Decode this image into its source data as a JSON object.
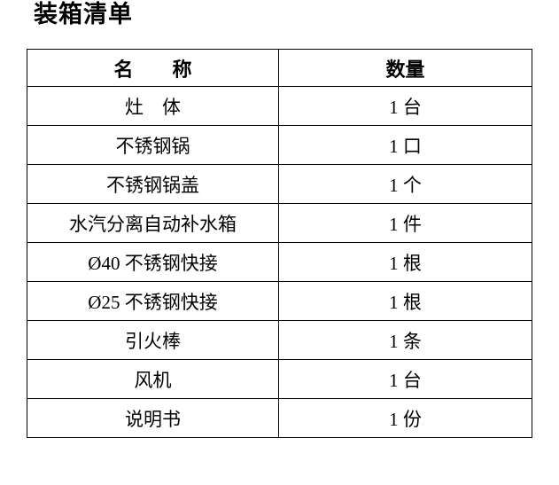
{
  "page": {
    "title": "装箱清单"
  },
  "table": {
    "columns": [
      {
        "label": "名　　称"
      },
      {
        "label": "数量"
      }
    ],
    "rows": [
      {
        "name": "灶　体",
        "qty": "1 台"
      },
      {
        "name": "不锈钢锅",
        "qty": "1 口"
      },
      {
        "name": "不锈钢锅盖",
        "qty": "1 个"
      },
      {
        "name": "水汽分离自动补水箱",
        "qty": "1 件"
      },
      {
        "name": "Ø40 不锈钢快接",
        "qty": "1 根"
      },
      {
        "name": "Ø25 不锈钢快接",
        "qty": "1 根"
      },
      {
        "name": "引火棒",
        "qty": "1 条"
      },
      {
        "name": "风机",
        "qty": "1 台"
      },
      {
        "name": "说明书",
        "qty": "1 份"
      }
    ]
  },
  "colors": {
    "background": "#ffffff",
    "text": "#000000",
    "border": "#000000"
  }
}
